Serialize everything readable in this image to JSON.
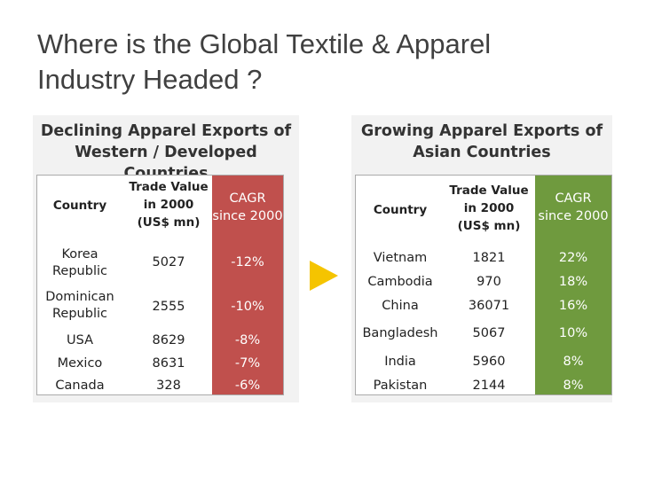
{
  "slide": {
    "title_line1": "Where is the Global Textile & Apparel",
    "title_line2": "Industry Headed ?"
  },
  "left_panel": {
    "title_line1": "Declining Apparel Exports of",
    "title_line2": "Western / Developed Countries",
    "headers": {
      "country": "Country",
      "trade": [
        "Trade Value",
        "in 2000",
        "(US$ mn)"
      ],
      "cagr": [
        "CAGR",
        "since 2000"
      ]
    },
    "rows": [
      {
        "country": [
          "Korea",
          "Republic"
        ],
        "trade": "5027",
        "cagr": "-12%"
      },
      {
        "country": [
          "Dominican",
          "Republic"
        ],
        "trade": "2555",
        "cagr": "-10%"
      },
      {
        "country": [
          "USA"
        ],
        "trade": "8629",
        "cagr": "-8%"
      },
      {
        "country": [
          "Mexico"
        ],
        "trade": "8631",
        "cagr": "-7%"
      },
      {
        "country": [
          "Canada"
        ],
        "trade": "328",
        "cagr": "-6%"
      }
    ],
    "accent_color": "#c0504d"
  },
  "right_panel": {
    "title_line1": "Growing Apparel Exports of",
    "title_line2": "Asian Countries",
    "headers": {
      "country": "Country",
      "trade": [
        "Trade Value",
        "in 2000",
        "(US$ mn)"
      ],
      "cagr": [
        "CAGR",
        "since 2000"
      ]
    },
    "rows": [
      {
        "country": "Vietnam",
        "trade": "1821",
        "cagr": "22%"
      },
      {
        "country": "Cambodia",
        "trade": "970",
        "cagr": "18%"
      },
      {
        "country": "China",
        "trade": "36071",
        "cagr": "16%"
      },
      {
        "country": "Bangladesh",
        "trade": "5067",
        "cagr": "10%"
      },
      {
        "country": "India",
        "trade": "5960",
        "cagr": "8%"
      },
      {
        "country": "Pakistan",
        "trade": "2144",
        "cagr": "8%"
      }
    ],
    "accent_color": "#6f9a3e"
  },
  "arrow_icon": "triangle-right-icon",
  "arrow_color": "#f5c400"
}
